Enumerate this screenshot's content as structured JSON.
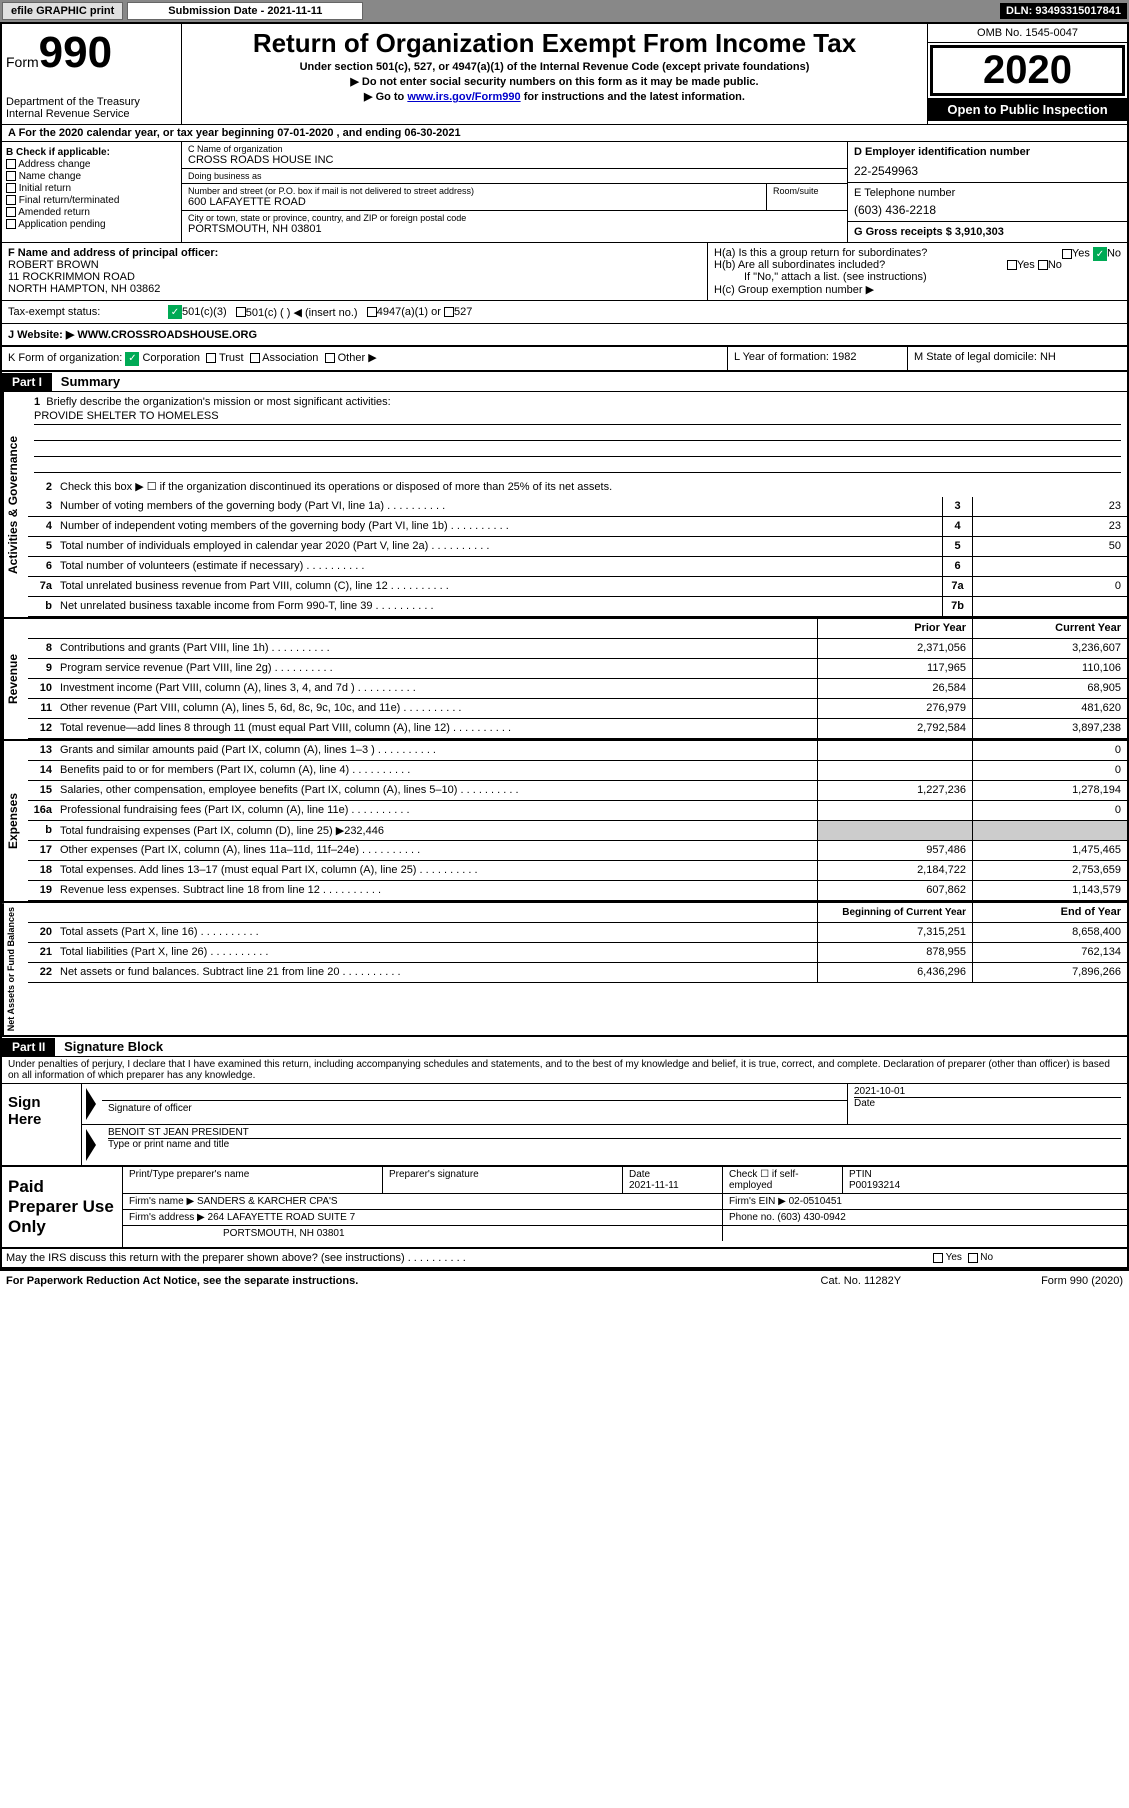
{
  "topbar": {
    "efile": "efile GRAPHIC print",
    "sub_label": "Submission Date - 2021-11-11",
    "dln": "DLN: 93493315017841"
  },
  "header": {
    "form_prefix": "Form",
    "form_num": "990",
    "dept": "Department of the Treasury\nInternal Revenue Service",
    "title": "Return of Organization Exempt From Income Tax",
    "sub": "Under section 501(c), 527, or 4947(a)(1) of the Internal Revenue Code (except private foundations)",
    "line1": "▶ Do not enter social security numbers on this form as it may be made public.",
    "line2_pre": "▶ Go to ",
    "line2_link": "www.irs.gov/Form990",
    "line2_post": " for instructions and the latest information.",
    "omb": "OMB No. 1545-0047",
    "year": "2020",
    "open": "Open to Public Inspection"
  },
  "row_a": "A For the 2020 calendar year, or tax year beginning 07-01-2020    , and ending 06-30-2021",
  "col_b": {
    "label": "B Check if applicable:",
    "opts": [
      "Address change",
      "Name change",
      "Initial return",
      "Final return/terminated",
      "Amended return",
      "Application pending"
    ]
  },
  "col_c": {
    "name_label": "C Name of organization",
    "name": "CROSS ROADS HOUSE INC",
    "dba_label": "Doing business as",
    "dba": "",
    "addr_label": "Number and street (or P.O. box if mail is not delivered to street address)",
    "addr": "600 LAFAYETTE ROAD",
    "room_label": "Room/suite",
    "city_label": "City or town, state or province, country, and ZIP or foreign postal code",
    "city": "PORTSMOUTH, NH  03801"
  },
  "col_d": {
    "ein_label": "D Employer identification number",
    "ein": "22-2549963",
    "tel_label": "E Telephone number",
    "tel": "(603) 436-2218",
    "gross_label": "G Gross receipts $ 3,910,303"
  },
  "col_f": {
    "label": "F  Name and address of principal officer:",
    "name": "ROBERT BROWN",
    "addr1": "11 ROCKRIMMON ROAD",
    "addr2": "NORTH HAMPTON, NH  03862"
  },
  "col_h": {
    "ha": "H(a)  Is this a group return for subordinates?",
    "hb": "H(b)  Are all subordinates included?",
    "hb_note": "If \"No,\" attach a list. (see instructions)",
    "hc": "H(c)  Group exemption number ▶",
    "yes": "Yes",
    "no": "No"
  },
  "row_i": {
    "label": "Tax-exempt status:",
    "o1": "501(c)(3)",
    "o2": "501(c) (  ) ◀ (insert no.)",
    "o3": "4947(a)(1) or",
    "o4": "527"
  },
  "row_j": {
    "label": "J    Website: ▶",
    "val": "WWW.CROSSROADSHOUSE.ORG"
  },
  "row_k": {
    "label": "K Form of organization:",
    "o1": "Corporation",
    "o2": "Trust",
    "o3": "Association",
    "o4": "Other ▶",
    "l_label": "L Year of formation: 1982",
    "m_label": "M State of legal domicile: NH"
  },
  "part1": {
    "hdr": "Part I",
    "title": "Summary"
  },
  "gov": {
    "side": "Activities & Governance",
    "q1": "Briefly describe the organization's mission or most significant activities:",
    "q1_val": "PROVIDE SHELTER TO HOMELESS",
    "q2": "Check this box ▶ ☐  if the organization discontinued its operations or disposed of more than 25% of its net assets.",
    "rows": [
      {
        "n": "3",
        "t": "Number of voting members of the governing body (Part VI, line 1a)",
        "box": "3",
        "v": "23"
      },
      {
        "n": "4",
        "t": "Number of independent voting members of the governing body (Part VI, line 1b)",
        "box": "4",
        "v": "23"
      },
      {
        "n": "5",
        "t": "Total number of individuals employed in calendar year 2020 (Part V, line 2a)",
        "box": "5",
        "v": "50"
      },
      {
        "n": "6",
        "t": "Total number of volunteers (estimate if necessary)",
        "box": "6",
        "v": ""
      },
      {
        "n": "7a",
        "t": "Total unrelated business revenue from Part VIII, column (C), line 12",
        "box": "7a",
        "v": "0"
      },
      {
        "n": "b",
        "t": "Net unrelated business taxable income from Form 990-T, line 39",
        "box": "7b",
        "v": ""
      }
    ]
  },
  "revexp_hdr": {
    "py": "Prior Year",
    "cy": "Current Year"
  },
  "rev": {
    "side": "Revenue",
    "rows": [
      {
        "n": "8",
        "t": "Contributions and grants (Part VIII, line 1h)",
        "py": "2,371,056",
        "cy": "3,236,607"
      },
      {
        "n": "9",
        "t": "Program service revenue (Part VIII, line 2g)",
        "py": "117,965",
        "cy": "110,106"
      },
      {
        "n": "10",
        "t": "Investment income (Part VIII, column (A), lines 3, 4, and 7d )",
        "py": "26,584",
        "cy": "68,905"
      },
      {
        "n": "11",
        "t": "Other revenue (Part VIII, column (A), lines 5, 6d, 8c, 9c, 10c, and 11e)",
        "py": "276,979",
        "cy": "481,620"
      },
      {
        "n": "12",
        "t": "Total revenue—add lines 8 through 11 (must equal Part VIII, column (A), line 12)",
        "py": "2,792,584",
        "cy": "3,897,238"
      }
    ]
  },
  "exp": {
    "side": "Expenses",
    "rows": [
      {
        "n": "13",
        "t": "Grants and similar amounts paid (Part IX, column (A), lines 1–3 )",
        "py": "",
        "cy": "0"
      },
      {
        "n": "14",
        "t": "Benefits paid to or for members (Part IX, column (A), line 4)",
        "py": "",
        "cy": "0"
      },
      {
        "n": "15",
        "t": "Salaries, other compensation, employee benefits (Part IX, column (A), lines 5–10)",
        "py": "1,227,236",
        "cy": "1,278,194"
      },
      {
        "n": "16a",
        "t": "Professional fundraising fees (Part IX, column (A), line 11e)",
        "py": "",
        "cy": "0"
      },
      {
        "n": "b",
        "t": "Total fundraising expenses (Part IX, column (D), line 25) ▶232,446",
        "py": "shaded",
        "cy": "shaded"
      },
      {
        "n": "17",
        "t": "Other expenses (Part IX, column (A), lines 11a–11d, 11f–24e)",
        "py": "957,486",
        "cy": "1,475,465"
      },
      {
        "n": "18",
        "t": "Total expenses. Add lines 13–17 (must equal Part IX, column (A), line 25)",
        "py": "2,184,722",
        "cy": "2,753,659"
      },
      {
        "n": "19",
        "t": "Revenue less expenses. Subtract line 18 from line 12",
        "py": "607,862",
        "cy": "1,143,579"
      }
    ]
  },
  "net_hdr": {
    "py": "Beginning of Current Year",
    "cy": "End of Year"
  },
  "net": {
    "side": "Net Assets or Fund Balances",
    "rows": [
      {
        "n": "20",
        "t": "Total assets (Part X, line 16)",
        "py": "7,315,251",
        "cy": "8,658,400"
      },
      {
        "n": "21",
        "t": "Total liabilities (Part X, line 26)",
        "py": "878,955",
        "cy": "762,134"
      },
      {
        "n": "22",
        "t": "Net assets or fund balances. Subtract line 21 from line 20",
        "py": "6,436,296",
        "cy": "7,896,266"
      }
    ]
  },
  "part2": {
    "hdr": "Part II",
    "title": "Signature Block"
  },
  "decl": "Under penalties of perjury, I declare that I have examined this return, including accompanying schedules and statements, and to the best of my knowledge and belief, it is true, correct, and complete. Declaration of preparer (other than officer) is based on all information of which preparer has any knowledge.",
  "sign": {
    "left": "Sign Here",
    "sig_label": "Signature of officer",
    "date": "2021-10-01",
    "date_label": "Date",
    "name": "BENOIT ST JEAN  PRESIDENT",
    "name_label": "Type or print name and title"
  },
  "prep": {
    "left": "Paid Preparer Use Only",
    "r1": {
      "c1_label": "Print/Type preparer's name",
      "c1": "",
      "c2_label": "Preparer's signature",
      "c2": "",
      "c3_label": "Date",
      "c3": "2021-11-11",
      "c4_label": "Check ☐ if self-employed",
      "c5_label": "PTIN",
      "c5": "P00193214"
    },
    "r2": {
      "label": "Firm's name    ▶",
      "val": "SANDERS & KARCHER CPA'S",
      "ein_label": "Firm's EIN ▶",
      "ein": "02-0510451"
    },
    "r3": {
      "label": "Firm's address ▶",
      "val": "264 LAFAYETTE ROAD SUITE 7",
      "tel_label": "Phone no.",
      "tel": "(603) 430-0942"
    },
    "r4": {
      "val": "PORTSMOUTH, NH  03801"
    }
  },
  "irs_discuss": "May the IRS discuss this return with the preparer shown above? (see instructions)",
  "footer": {
    "l": "For Paperwork Reduction Act Notice, see the separate instructions.",
    "m": "Cat. No. 11282Y",
    "r": "Form 990 (2020)"
  }
}
